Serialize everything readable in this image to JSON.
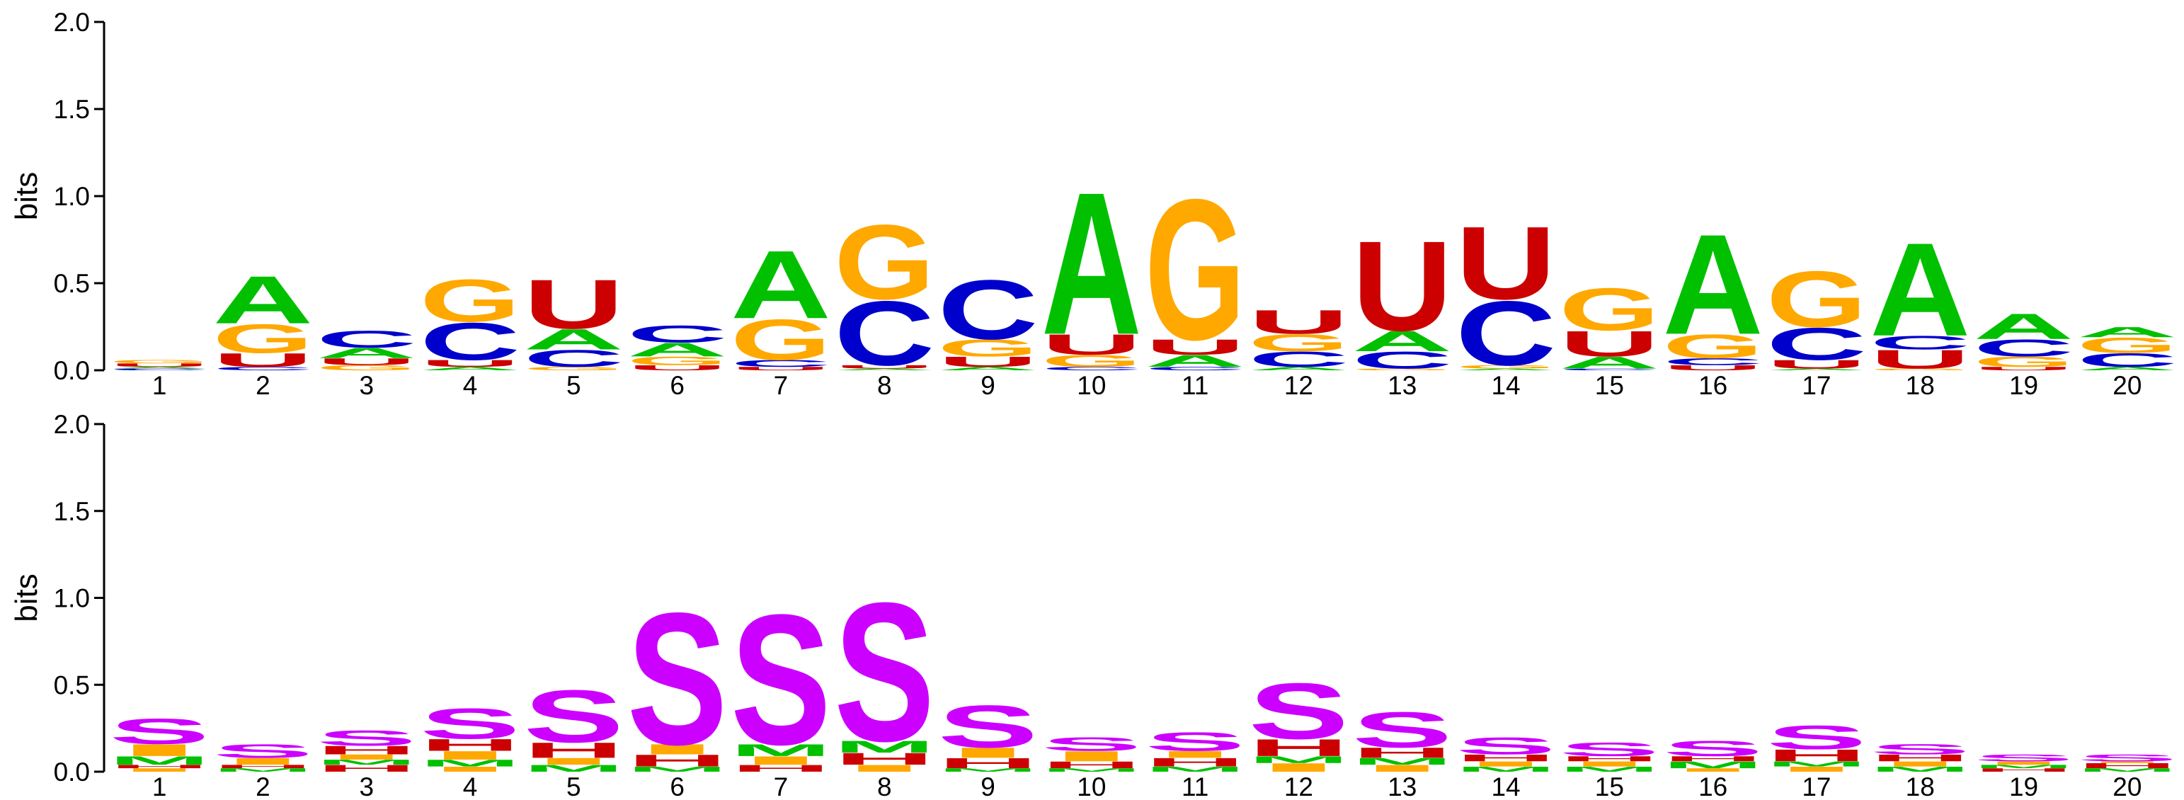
{
  "chart_data": [
    {
      "type": "sequence-logo",
      "ylabel": "bits",
      "ylim": [
        0,
        2.0
      ],
      "yticks": [
        "0.0",
        "0.5",
        "1.0",
        "1.5",
        "2.0"
      ],
      "positions": [
        "1",
        "2",
        "3",
        "4",
        "5",
        "6",
        "7",
        "8",
        "9",
        "10",
        "11",
        "12",
        "13",
        "14",
        "15",
        "16",
        "17",
        "18",
        "19",
        "20"
      ],
      "colors": {
        "A": "#00c000",
        "C": "#0000cc",
        "G": "#ffa800",
        "U": "#cc0000"
      },
      "stacks": [
        [
          [
            "C",
            0.01
          ],
          [
            "A",
            0.01
          ],
          [
            "U",
            0.02
          ],
          [
            "G",
            0.02
          ]
        ],
        [
          [
            "C",
            0.02
          ],
          [
            "U",
            0.08
          ],
          [
            "G",
            0.17
          ],
          [
            "A",
            0.28
          ]
        ],
        [
          [
            "G",
            0.03
          ],
          [
            "U",
            0.04
          ],
          [
            "A",
            0.06
          ],
          [
            "C",
            0.1
          ]
        ],
        [
          [
            "A",
            0.02
          ],
          [
            "U",
            0.04
          ],
          [
            "C",
            0.22
          ],
          [
            "G",
            0.25
          ]
        ],
        [
          [
            "G",
            0.02
          ],
          [
            "C",
            0.1
          ],
          [
            "A",
            0.12
          ],
          [
            "U",
            0.29
          ]
        ],
        [
          [
            "U",
            0.03
          ],
          [
            "G",
            0.05
          ],
          [
            "A",
            0.08
          ],
          [
            "C",
            0.1
          ]
        ],
        [
          [
            "U",
            0.02
          ],
          [
            "C",
            0.04
          ],
          [
            "G",
            0.24
          ],
          [
            "A",
            0.4
          ]
        ],
        [
          [
            "A",
            0.01
          ],
          [
            "U",
            0.02
          ],
          [
            "C",
            0.38
          ],
          [
            "G",
            0.44
          ]
        ],
        [
          [
            "A",
            0.02
          ],
          [
            "U",
            0.06
          ],
          [
            "G",
            0.1
          ],
          [
            "C",
            0.35
          ]
        ],
        [
          [
            "C",
            0.02
          ],
          [
            "G",
            0.07
          ],
          [
            "U",
            0.12
          ],
          [
            "A",
            0.84
          ]
        ],
        [
          [
            "C",
            0.02
          ],
          [
            "A",
            0.07
          ],
          [
            "U",
            0.09
          ],
          [
            "G",
            0.83
          ]
        ],
        [
          [
            "A",
            0.02
          ],
          [
            "C",
            0.09
          ],
          [
            "G",
            0.1
          ],
          [
            "U",
            0.14
          ]
        ],
        [
          [
            "G",
            0.01
          ],
          [
            "C",
            0.1
          ],
          [
            "A",
            0.12
          ],
          [
            "U",
            0.53
          ]
        ],
        [
          [
            "A",
            0.01
          ],
          [
            "G",
            0.02
          ],
          [
            "C",
            0.38
          ],
          [
            "U",
            0.43
          ]
        ],
        [
          [
            "C",
            0.01
          ],
          [
            "A",
            0.07
          ],
          [
            "U",
            0.15
          ],
          [
            "G",
            0.25
          ]
        ],
        [
          [
            "U",
            0.03
          ],
          [
            "C",
            0.04
          ],
          [
            "G",
            0.14
          ],
          [
            "A",
            0.59
          ]
        ],
        [
          [
            "A",
            0.01
          ],
          [
            "U",
            0.05
          ],
          [
            "C",
            0.19
          ],
          [
            "G",
            0.33
          ]
        ],
        [
          [
            "G",
            0.01
          ],
          [
            "U",
            0.11
          ],
          [
            "C",
            0.08
          ],
          [
            "A",
            0.55
          ]
        ],
        [
          [
            "U",
            0.02
          ],
          [
            "G",
            0.06
          ],
          [
            "C",
            0.1
          ],
          [
            "A",
            0.15
          ]
        ],
        [
          [
            "A",
            0.02
          ],
          [
            "C",
            0.08
          ],
          [
            "G",
            0.09
          ],
          [
            "A",
            0.06
          ]
        ]
      ]
    },
    {
      "type": "sequence-logo",
      "ylabel": "bits",
      "ylim": [
        0,
        2.0
      ],
      "yticks": [
        "0.0",
        "0.5",
        "1.0",
        "1.5",
        "2.0"
      ],
      "positions": [
        "1",
        "2",
        "3",
        "4",
        "5",
        "6",
        "7",
        "8",
        "9",
        "10",
        "11",
        "12",
        "13",
        "14",
        "15",
        "16",
        "17",
        "18",
        "19",
        "20"
      ],
      "colors": {
        "S": "#cc00ff",
        "H": "#cc0000",
        "I": "#ffa800",
        "M": "#00c000"
      },
      "stacks": [
        [
          [
            "I",
            0.02
          ],
          [
            "H",
            0.02
          ],
          [
            "M",
            0.05
          ],
          [
            "I",
            0.07
          ],
          [
            "S",
            0.15
          ]
        ],
        [
          [
            "M",
            0.02
          ],
          [
            "H",
            0.02
          ],
          [
            "I",
            0.04
          ],
          [
            "S",
            0.08
          ]
        ],
        [
          [
            "H",
            0.04
          ],
          [
            "M",
            0.03
          ],
          [
            "I",
            0.03
          ],
          [
            "H",
            0.05
          ],
          [
            "S",
            0.09
          ]
        ],
        [
          [
            "I",
            0.03
          ],
          [
            "M",
            0.04
          ],
          [
            "I",
            0.05
          ],
          [
            "H",
            0.07
          ],
          [
            "S",
            0.18
          ]
        ],
        [
          [
            "M",
            0.04
          ],
          [
            "I",
            0.04
          ],
          [
            "H",
            0.09
          ],
          [
            "S",
            0.31
          ]
        ],
        [
          [
            "M",
            0.03
          ],
          [
            "H",
            0.07
          ],
          [
            "I",
            0.06
          ],
          [
            "S",
            0.78
          ]
        ],
        [
          [
            "H",
            0.04
          ],
          [
            "I",
            0.05
          ],
          [
            "M",
            0.07
          ],
          [
            "S",
            0.77
          ]
        ],
        [
          [
            "I",
            0.04
          ],
          [
            "H",
            0.07
          ],
          [
            "M",
            0.07
          ],
          [
            "S",
            0.82
          ]
        ],
        [
          [
            "M",
            0.02
          ],
          [
            "H",
            0.06
          ],
          [
            "I",
            0.06
          ],
          [
            "S",
            0.25
          ]
        ],
        [
          [
            "M",
            0.02
          ],
          [
            "H",
            0.04
          ],
          [
            "I",
            0.06
          ],
          [
            "S",
            0.08
          ]
        ],
        [
          [
            "M",
            0.03
          ],
          [
            "H",
            0.05
          ],
          [
            "I",
            0.04
          ],
          [
            "S",
            0.11
          ]
        ],
        [
          [
            "I",
            0.05
          ],
          [
            "M",
            0.04
          ],
          [
            "H",
            0.1
          ],
          [
            "S",
            0.33
          ]
        ],
        [
          [
            "I",
            0.04
          ],
          [
            "M",
            0.04
          ],
          [
            "H",
            0.06
          ],
          [
            "S",
            0.21
          ]
        ],
        [
          [
            "M",
            0.03
          ],
          [
            "I",
            0.03
          ],
          [
            "H",
            0.04
          ],
          [
            "S",
            0.1
          ]
        ],
        [
          [
            "M",
            0.03
          ],
          [
            "I",
            0.03
          ],
          [
            "H",
            0.03
          ],
          [
            "S",
            0.08
          ]
        ],
        [
          [
            "I",
            0.02
          ],
          [
            "M",
            0.04
          ],
          [
            "H",
            0.03
          ],
          [
            "S",
            0.09
          ]
        ],
        [
          [
            "I",
            0.03
          ],
          [
            "M",
            0.03
          ],
          [
            "H",
            0.07
          ],
          [
            "S",
            0.14
          ]
        ],
        [
          [
            "M",
            0.03
          ],
          [
            "I",
            0.03
          ],
          [
            "H",
            0.04
          ],
          [
            "S",
            0.06
          ]
        ],
        [
          [
            "H",
            0.02
          ],
          [
            "M",
            0.02
          ],
          [
            "I",
            0.02
          ],
          [
            "S",
            0.04
          ]
        ],
        [
          [
            "M",
            0.02
          ],
          [
            "H",
            0.03
          ],
          [
            "I",
            0.01
          ],
          [
            "S",
            0.04
          ]
        ]
      ]
    }
  ]
}
